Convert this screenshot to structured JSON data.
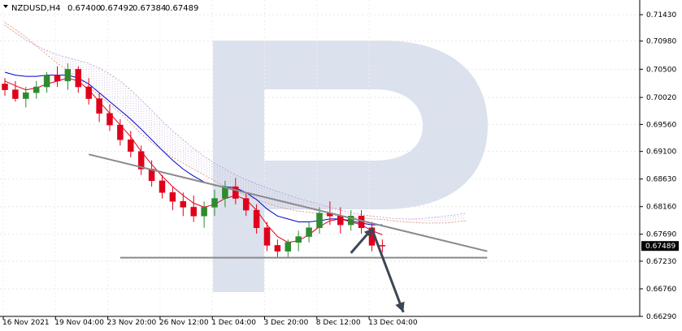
{
  "header": {
    "symbol": "NZDUSD,H4",
    "open": "0.67400",
    "high": "0.67492",
    "low": "0.67384",
    "close": "0.67489"
  },
  "current_price_label": "0.67489",
  "colors": {
    "bull": "#2e8b2e",
    "bear": "#e0001b",
    "kijun": "#0000c8",
    "tenkan": "#e0001b",
    "cloud_a": "#e89a6b",
    "cloud_b": "#b99ad0",
    "pattern": "#8a8a8a",
    "arrow": "#3a4756",
    "watermark": "#d5dcea",
    "price_box": "#000000"
  },
  "icons": {
    "watermark": "logo-watermark-icon",
    "arrow": "forecast-arrow-icon"
  },
  "chart_data": {
    "type": "candlestick",
    "y_range": [
      0.6629,
      0.7168
    ],
    "y_ticks": [
      "0.71430",
      "0.70980",
      "0.70500",
      "0.70020",
      "0.69560",
      "0.69100",
      "0.68630",
      "0.68160",
      "0.67690",
      "0.67230",
      "0.66760",
      "0.66290"
    ],
    "x_ticks": [
      "16 Nov 2021",
      "19 Nov 04:00",
      "23 Nov 20:00",
      "26 Nov 12:00",
      "1 Dec 04:00",
      "3 Dec 20:00",
      "8 Dec 12:00",
      "13 Dec 04:00"
    ],
    "current_price": 0.67489,
    "ohlc": [
      [
        0.7025,
        0.7035,
        0.7005,
        0.7015
      ],
      [
        0.7015,
        0.703,
        0.6995,
        0.7
      ],
      [
        0.7,
        0.702,
        0.6985,
        0.701
      ],
      [
        0.701,
        0.703,
        0.7,
        0.702
      ],
      [
        0.702,
        0.7045,
        0.701,
        0.704
      ],
      [
        0.704,
        0.7055,
        0.702,
        0.703
      ],
      [
        0.703,
        0.706,
        0.7015,
        0.705
      ],
      [
        0.705,
        0.7055,
        0.701,
        0.702
      ],
      [
        0.702,
        0.7035,
        0.699,
        0.7
      ],
      [
        0.7,
        0.701,
        0.696,
        0.6975
      ],
      [
        0.6975,
        0.699,
        0.6945,
        0.6955
      ],
      [
        0.6955,
        0.6965,
        0.692,
        0.693
      ],
      [
        0.693,
        0.6945,
        0.69,
        0.691
      ],
      [
        0.691,
        0.692,
        0.687,
        0.688
      ],
      [
        0.688,
        0.6895,
        0.685,
        0.686
      ],
      [
        0.686,
        0.687,
        0.683,
        0.684
      ],
      [
        0.684,
        0.685,
        0.681,
        0.6825
      ],
      [
        0.6825,
        0.684,
        0.68,
        0.6815
      ],
      [
        0.6815,
        0.6835,
        0.679,
        0.68
      ],
      [
        0.68,
        0.6825,
        0.678,
        0.6815
      ],
      [
        0.6815,
        0.6845,
        0.68,
        0.683
      ],
      [
        0.683,
        0.686,
        0.6815,
        0.685
      ],
      [
        0.685,
        0.6865,
        0.682,
        0.683
      ],
      [
        0.683,
        0.684,
        0.68,
        0.681
      ],
      [
        0.681,
        0.682,
        0.677,
        0.678
      ],
      [
        0.678,
        0.679,
        0.674,
        0.675
      ],
      [
        0.675,
        0.676,
        0.673,
        0.674
      ],
      [
        0.674,
        0.676,
        0.673,
        0.6755
      ],
      [
        0.6755,
        0.6775,
        0.674,
        0.6765
      ],
      [
        0.6765,
        0.679,
        0.6755,
        0.678
      ],
      [
        0.678,
        0.6815,
        0.677,
        0.6805
      ],
      [
        0.6805,
        0.6825,
        0.6785,
        0.68
      ],
      [
        0.68,
        0.6815,
        0.677,
        0.6785
      ],
      [
        0.6785,
        0.681,
        0.6775,
        0.68
      ],
      [
        0.68,
        0.681,
        0.677,
        0.678
      ],
      [
        0.678,
        0.679,
        0.674,
        0.675
      ],
      [
        0.675,
        0.676,
        0.6738,
        0.6749
      ]
    ],
    "tenkan": [
      0.703,
      0.7022,
      0.7015,
      0.7018,
      0.7025,
      0.703,
      0.7035,
      0.703,
      0.7015,
      0.6995,
      0.6975,
      0.6955,
      0.6935,
      0.691,
      0.6888,
      0.6868,
      0.685,
      0.6835,
      0.6822,
      0.6815,
      0.682,
      0.683,
      0.6835,
      0.6828,
      0.681,
      0.6785,
      0.6765,
      0.6755,
      0.6758,
      0.6768,
      0.6782,
      0.6792,
      0.6795,
      0.679,
      0.6785,
      0.6775,
      0.6768
    ],
    "kijun": [
      0.7045,
      0.704,
      0.7038,
      0.7038,
      0.704,
      0.704,
      0.704,
      0.7035,
      0.7025,
      0.701,
      0.6995,
      0.698,
      0.6965,
      0.6948,
      0.693,
      0.6912,
      0.6895,
      0.688,
      0.6868,
      0.6858,
      0.6852,
      0.685,
      0.6848,
      0.684,
      0.6828,
      0.6812,
      0.68,
      0.6795,
      0.679,
      0.679,
      0.6792,
      0.6795,
      0.6795,
      0.6792,
      0.6788,
      0.6785,
      0.6785
    ],
    "span_a": [
      0.713,
      0.7118,
      0.7105,
      0.709,
      0.7075,
      0.706,
      0.7048,
      0.7035,
      0.702,
      0.7005,
      0.699,
      0.6975,
      0.6958,
      0.694,
      0.6925,
      0.6912,
      0.69,
      0.689,
      0.688,
      0.687,
      0.686,
      0.685,
      0.6842,
      0.6835,
      0.6828,
      0.6822,
      0.6816,
      0.6812,
      0.6808,
      0.6806,
      0.6804,
      0.6802,
      0.68,
      0.6798,
      0.6796,
      0.6795,
      0.6794,
      0.6792,
      0.679,
      0.6789,
      0.6788,
      0.6788,
      0.6788,
      0.679,
      0.6792
    ],
    "span_b": [
      0.7125,
      0.7112,
      0.71,
      0.709,
      0.7082,
      0.7075,
      0.707,
      0.7065,
      0.706,
      0.7052,
      0.7042,
      0.703,
      0.7015,
      0.6998,
      0.698,
      0.6962,
      0.6945,
      0.693,
      0.6915,
      0.6902,
      0.689,
      0.688,
      0.687,
      0.6862,
      0.6855,
      0.6848,
      0.6842,
      0.6836,
      0.683,
      0.6825,
      0.682,
      0.6815,
      0.681,
      0.6806,
      0.6802,
      0.68,
      0.6798,
      0.6796,
      0.6795,
      0.6795,
      0.6796,
      0.6798,
      0.68,
      0.6802,
      0.6805
    ],
    "pattern_lines": {
      "upper_trendline": [
        [
          8,
          0.6905
        ],
        [
          46,
          0.674
        ]
      ],
      "support": [
        [
          11,
          0.6729
        ],
        [
          46,
          0.6729
        ]
      ]
    },
    "forecast_arrow": [
      [
        33,
        0.6737
      ],
      [
        35,
        0.6778
      ],
      [
        38,
        0.6636
      ]
    ]
  }
}
